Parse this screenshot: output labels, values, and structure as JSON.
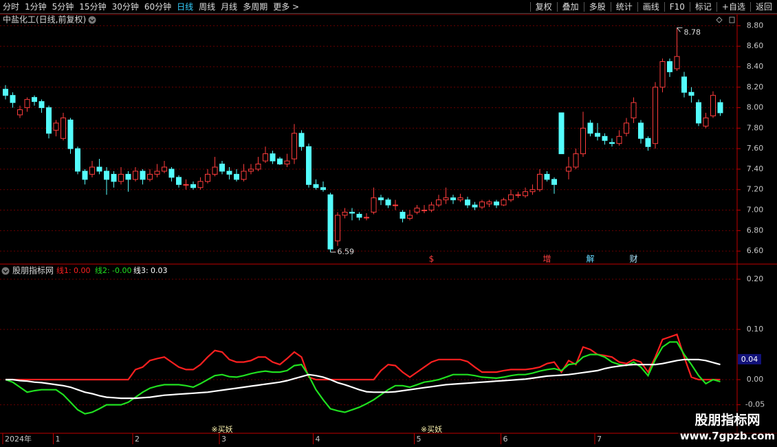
{
  "toolbar": {
    "left": [
      "分时",
      "1分钟",
      "5分钟",
      "15分钟",
      "30分钟",
      "60分钟",
      "日线",
      "周线",
      "月线",
      "多周期",
      "更多 >"
    ],
    "right": [
      "复权",
      "叠加",
      "多股",
      "统计",
      "画线",
      "F10",
      "标记",
      "+自选",
      "返回"
    ]
  },
  "watermark": {
    "title": "股朋指标网",
    "url": "www.7gpzb.com"
  },
  "chart_data": [
    {
      "type": "candlestick",
      "title": "中盐化工(日线,前复权)",
      "categories": [
        "2024年",
        null,
        null,
        null,
        null,
        null,
        null,
        "1",
        null,
        null,
        null,
        null,
        null,
        null,
        null,
        null,
        null,
        null,
        "2",
        null,
        null,
        null,
        null,
        null,
        null,
        null,
        null,
        null,
        null,
        null,
        "3",
        null,
        null,
        null,
        null,
        null,
        null,
        null,
        null,
        null,
        null,
        null,
        null,
        "4",
        null,
        null,
        null,
        null,
        null,
        null,
        null,
        null,
        null,
        null,
        null,
        null,
        null,
        "5",
        null,
        null,
        null,
        null,
        null,
        null,
        null,
        null,
        null,
        null,
        null,
        "6",
        null,
        null,
        null,
        null,
        null,
        null,
        null,
        null,
        null,
        null,
        null,
        null,
        "7",
        null,
        null,
        null,
        null,
        null,
        null,
        null,
        null,
        null,
        null,
        null,
        null,
        null,
        null,
        null,
        null,
        null
      ],
      "open": [
        8.18,
        8.12,
        7.93,
        8.0,
        8.1,
        8.06,
        8.0,
        7.78,
        7.7,
        7.88,
        7.6,
        7.38,
        7.35,
        7.42,
        7.38,
        7.35,
        7.28,
        7.35,
        7.3,
        7.38,
        7.3,
        7.35,
        7.38,
        7.4,
        7.32,
        7.25,
        7.25,
        7.22,
        7.28,
        7.35,
        7.45,
        7.38,
        7.35,
        7.3,
        7.38,
        7.4,
        7.48,
        7.55,
        7.5,
        7.45,
        7.5,
        7.75,
        7.62,
        7.25,
        7.22,
        7.15,
        6.7,
        6.95,
        6.98,
        6.96,
        6.93,
        6.98,
        7.12,
        7.1,
        7.05,
        6.98,
        6.92,
        6.98,
        7.0,
        7.0,
        7.05,
        7.1,
        7.12,
        7.1,
        7.1,
        7.05,
        7.03,
        7.06,
        7.08,
        7.05,
        7.1,
        7.15,
        7.14,
        7.18,
        7.2,
        7.35,
        7.3,
        7.95,
        7.38,
        7.42,
        7.55,
        7.85,
        7.75,
        7.72,
        7.66,
        7.65,
        7.75,
        7.9,
        7.85,
        7.7,
        7.65,
        8.2,
        8.45,
        8.38,
        8.3,
        8.15,
        8.05,
        7.82,
        7.92,
        8.05
      ],
      "high": [
        8.22,
        8.15,
        8.02,
        8.1,
        8.12,
        8.08,
        8.02,
        7.88,
        7.95,
        7.9,
        7.62,
        7.4,
        7.48,
        7.5,
        7.42,
        7.38,
        7.42,
        7.38,
        7.42,
        7.4,
        7.4,
        7.45,
        7.48,
        7.42,
        7.34,
        7.3,
        7.28,
        7.32,
        7.4,
        7.52,
        7.48,
        7.42,
        7.4,
        7.45,
        7.45,
        7.52,
        7.62,
        7.58,
        7.52,
        7.55,
        7.84,
        7.78,
        7.65,
        7.3,
        7.28,
        7.17,
        6.98,
        7.02,
        7.02,
        6.98,
        6.97,
        7.22,
        7.15,
        7.12,
        7.1,
        7.0,
        7.0,
        7.05,
        7.05,
        7.08,
        7.15,
        7.22,
        7.15,
        7.16,
        7.13,
        7.08,
        7.1,
        7.1,
        7.1,
        7.12,
        7.2,
        7.18,
        7.22,
        7.25,
        7.4,
        7.38,
        7.32,
        7.95,
        7.52,
        7.6,
        7.96,
        7.88,
        7.85,
        7.75,
        7.7,
        7.78,
        7.9,
        8.1,
        7.88,
        7.72,
        8.25,
        8.48,
        8.48,
        8.78,
        8.35,
        8.2,
        8.08,
        7.95,
        8.16,
        8.08
      ],
      "low": [
        8.08,
        8.0,
        7.9,
        7.96,
        8.02,
        7.95,
        7.7,
        7.72,
        7.68,
        7.55,
        7.35,
        7.25,
        7.32,
        7.35,
        7.15,
        7.22,
        7.25,
        7.18,
        7.28,
        7.25,
        7.28,
        7.32,
        7.36,
        7.28,
        7.22,
        7.2,
        7.2,
        7.2,
        7.26,
        7.33,
        7.35,
        7.3,
        7.28,
        7.28,
        7.35,
        7.38,
        7.46,
        7.45,
        7.44,
        7.42,
        7.45,
        7.58,
        7.22,
        7.2,
        7.18,
        6.59,
        6.65,
        6.92,
        6.9,
        6.9,
        6.9,
        6.96,
        7.05,
        7.02,
        7.0,
        6.88,
        6.9,
        6.96,
        6.97,
        6.98,
        7.03,
        7.06,
        7.06,
        7.08,
        7.02,
        7.0,
        7.01,
        7.03,
        7.02,
        7.04,
        7.08,
        7.12,
        7.12,
        7.15,
        7.18,
        7.28,
        7.16,
        7.55,
        7.3,
        7.4,
        7.52,
        7.72,
        7.68,
        7.64,
        7.62,
        7.63,
        7.72,
        7.85,
        7.65,
        7.58,
        7.6,
        8.15,
        8.3,
        8.36,
        8.1,
        8.05,
        7.82,
        7.8,
        7.9,
        7.92
      ],
      "close": [
        8.12,
        8.05,
        7.98,
        8.08,
        8.06,
        8.0,
        7.75,
        7.85,
        7.9,
        7.6,
        7.38,
        7.3,
        7.42,
        7.38,
        7.3,
        7.28,
        7.35,
        7.3,
        7.38,
        7.3,
        7.35,
        7.38,
        7.42,
        7.32,
        7.25,
        7.25,
        7.22,
        7.28,
        7.35,
        7.42,
        7.38,
        7.35,
        7.3,
        7.38,
        7.4,
        7.45,
        7.55,
        7.48,
        7.45,
        7.48,
        7.75,
        7.62,
        7.25,
        7.22,
        7.2,
        6.62,
        6.95,
        6.98,
        6.97,
        6.93,
        6.93,
        7.12,
        7.1,
        7.05,
        7.05,
        6.92,
        6.95,
        7.02,
        7.0,
        7.05,
        7.1,
        7.12,
        7.1,
        7.12,
        7.05,
        7.03,
        7.08,
        7.08,
        7.05,
        7.1,
        7.15,
        7.15,
        7.18,
        7.2,
        7.35,
        7.3,
        7.25,
        7.55,
        7.42,
        7.55,
        7.8,
        7.75,
        7.72,
        7.68,
        7.65,
        7.72,
        7.85,
        8.05,
        7.7,
        7.62,
        8.2,
        8.45,
        8.35,
        8.5,
        8.15,
        8.12,
        7.85,
        7.9,
        8.12,
        7.95
      ],
      "up_color": "#ff3c3c",
      "down_color": "#54fcfc",
      "ylim": [
        6.48,
        8.89
      ],
      "yticks": [
        {
          "value": 6.6,
          "label": "6.60"
        },
        {
          "value": 6.8,
          "label": "6.80"
        },
        {
          "value": 7.0,
          "label": "7.00"
        },
        {
          "value": 7.2,
          "label": "7.20"
        },
        {
          "value": 7.4,
          "label": "7.40"
        },
        {
          "value": 7.6,
          "label": "7.60"
        },
        {
          "value": 7.8,
          "label": "7.80"
        },
        {
          "value": 8.0,
          "label": "8.00"
        },
        {
          "value": 8.2,
          "label": "8.20"
        },
        {
          "value": 8.4,
          "label": "8.40"
        },
        {
          "value": 8.6,
          "label": "8.60"
        },
        {
          "value": 8.8,
          "label": "8.80"
        }
      ],
      "grid": true,
      "events": [
        null,
        null,
        null,
        null,
        null,
        null,
        null,
        null,
        null,
        null,
        null,
        null,
        null,
        null,
        null,
        null,
        null,
        null,
        null,
        null,
        null,
        null,
        null,
        null,
        null,
        null,
        null,
        null,
        null,
        null,
        null,
        null,
        null,
        null,
        null,
        null,
        null,
        null,
        null,
        null,
        null,
        null,
        null,
        null,
        null,
        null,
        null,
        null,
        null,
        null,
        null,
        null,
        null,
        null,
        null,
        null,
        null,
        null,
        null,
        "$",
        null,
        null,
        null,
        null,
        null,
        null,
        null,
        null,
        null,
        null,
        null,
        null,
        null,
        null,
        null,
        "增",
        null,
        null,
        null,
        null,
        null,
        "解",
        null,
        null,
        null,
        null,
        null,
        "财",
        null,
        null,
        null,
        null,
        null,
        null,
        null,
        null,
        null,
        null,
        null,
        null
      ]
    },
    {
      "type": "line",
      "title": "股朋指标网",
      "series": [
        {
          "name": "线1:",
          "color": "#ff2020",
          "last_label": "0.00",
          "values": [
            0,
            0,
            0,
            0,
            0,
            0,
            0,
            0,
            0,
            0,
            0,
            0,
            0,
            0,
            0,
            0,
            0,
            0,
            0.02,
            0.025,
            0.038,
            0.042,
            0.045,
            0.035,
            0.025,
            0.02,
            0.02,
            0.03,
            0.045,
            0.058,
            0.055,
            0.04,
            0.035,
            0.035,
            0.038,
            0.045,
            0.045,
            0.035,
            0.03,
            0.042,
            0.055,
            0.045,
            0.005,
            0,
            0,
            0,
            0,
            0,
            0,
            0,
            0,
            0,
            0.018,
            0.03,
            0.028,
            0.015,
            0.005,
            0.015,
            0.025,
            0.035,
            0.04,
            0.04,
            0.04,
            0.04,
            0.036,
            0.025,
            0.015,
            0.015,
            0.015,
            0.018,
            0.02,
            0.02,
            0.02,
            0.022,
            0.025,
            0.032,
            0.035,
            0.015,
            0.038,
            0.03,
            0.065,
            0.06,
            0.05,
            0.048,
            0.045,
            0.035,
            0.032,
            0.04,
            0.035,
            0.015,
            0.045,
            0.08,
            0.085,
            0.09,
            0.045,
            0.005,
            0,
            0,
            0,
            0
          ]
        },
        {
          "name": "线2:",
          "color": "#20e020",
          "last_label": "-0.00",
          "values": [
            0,
            -0.005,
            -0.015,
            -0.025,
            -0.022,
            -0.02,
            -0.02,
            -0.02,
            -0.03,
            -0.045,
            -0.06,
            -0.068,
            -0.065,
            -0.058,
            -0.05,
            -0.05,
            -0.05,
            -0.045,
            -0.035,
            -0.025,
            -0.017,
            -0.013,
            -0.01,
            -0.01,
            -0.01,
            -0.012,
            -0.015,
            -0.008,
            0,
            0.008,
            0.01,
            0.006,
            0.005,
            0.008,
            0.012,
            0.015,
            0.017,
            0.015,
            0.015,
            0.018,
            0.028,
            0.03,
            0.008,
            -0.02,
            -0.04,
            -0.058,
            -0.062,
            -0.065,
            -0.06,
            -0.055,
            -0.048,
            -0.04,
            -0.03,
            -0.02,
            -0.012,
            -0.012,
            -0.015,
            -0.01,
            -0.005,
            -0.003,
            0,
            0.005,
            0.01,
            0.01,
            0.01,
            0.008,
            0.005,
            0.004,
            0.003,
            0.005,
            0.008,
            0.01,
            0.01,
            0.013,
            0.017,
            0.02,
            0.022,
            0.018,
            0.03,
            0.032,
            0.045,
            0.05,
            0.05,
            0.045,
            0.035,
            0.03,
            0.028,
            0.035,
            0.025,
            0.008,
            0.04,
            0.065,
            0.075,
            0.075,
            0.05,
            0.03,
            0.008,
            -0.008,
            0,
            -0.004
          ]
        },
        {
          "name": "线3:",
          "color": "#ffffff",
          "last_label": "0.03",
          "values": [
            0,
            0,
            -0.002,
            -0.003,
            -0.005,
            -0.006,
            -0.008,
            -0.01,
            -0.012,
            -0.015,
            -0.02,
            -0.025,
            -0.028,
            -0.032,
            -0.035,
            -0.036,
            -0.037,
            -0.037,
            -0.037,
            -0.036,
            -0.035,
            -0.033,
            -0.031,
            -0.03,
            -0.029,
            -0.028,
            -0.027,
            -0.026,
            -0.025,
            -0.023,
            -0.021,
            -0.019,
            -0.017,
            -0.015,
            -0.013,
            -0.011,
            -0.009,
            -0.007,
            -0.005,
            -0.002,
            0.002,
            0.006,
            0.01,
            0.008,
            0.005,
            0,
            -0.006,
            -0.01,
            -0.015,
            -0.02,
            -0.024,
            -0.025,
            -0.025,
            -0.025,
            -0.024,
            -0.022,
            -0.02,
            -0.018,
            -0.016,
            -0.014,
            -0.012,
            -0.01,
            -0.009,
            -0.008,
            -0.007,
            -0.006,
            -0.005,
            -0.004,
            -0.003,
            -0.002,
            -0.001,
            0,
            0.001,
            0.003,
            0.005,
            0.007,
            0.008,
            0.009,
            0.01,
            0.012,
            0.014,
            0.016,
            0.018,
            0.022,
            0.025,
            0.027,
            0.029,
            0.03,
            0.03,
            0.03,
            0.03,
            0.032,
            0.035,
            0.038,
            0.04,
            0.04,
            0.04,
            0.038,
            0.034,
            0.03
          ]
        }
      ],
      "ylim": [
        -0.104,
        0.226
      ],
      "yticks": [
        {
          "value": -0.05,
          "label": "-0.05"
        },
        {
          "value": 0,
          "label": "0.00"
        },
        {
          "value": 0.1,
          "label": "0.10"
        },
        {
          "value": 0.2,
          "label": "0.20"
        }
      ],
      "grid": true,
      "current_value": 0.04,
      "signals": [
        null,
        null,
        null,
        null,
        null,
        null,
        null,
        null,
        null,
        null,
        null,
        null,
        null,
        null,
        null,
        null,
        null,
        null,
        null,
        null,
        null,
        null,
        null,
        null,
        null,
        null,
        null,
        null,
        null,
        null,
        "※买妖",
        null,
        null,
        null,
        null,
        null,
        null,
        null,
        null,
        null,
        null,
        null,
        null,
        null,
        null,
        null,
        null,
        null,
        null,
        null,
        null,
        null,
        null,
        null,
        null,
        null,
        null,
        null,
        null,
        "※买妖",
        null,
        null,
        null,
        null,
        null,
        null,
        null,
        null,
        null,
        null,
        null,
        null,
        null,
        null,
        null,
        null,
        null,
        null,
        null,
        null,
        null,
        null,
        null,
        null,
        null,
        null,
        null,
        null,
        null,
        null,
        null,
        null,
        null,
        null,
        null,
        null,
        null,
        null,
        null,
        null
      ]
    }
  ]
}
